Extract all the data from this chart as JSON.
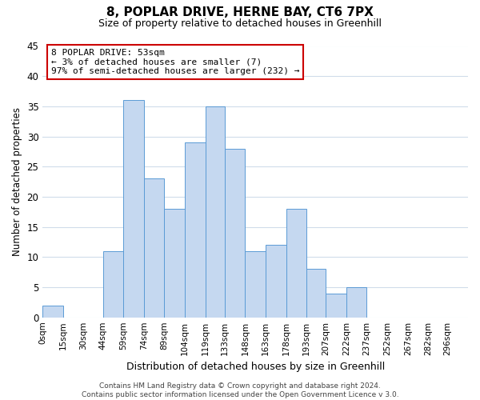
{
  "title": "8, POPLAR DRIVE, HERNE BAY, CT6 7PX",
  "subtitle": "Size of property relative to detached houses in Greenhill",
  "xlabel": "Distribution of detached houses by size in Greenhill",
  "ylabel": "Number of detached properties",
  "bar_labels": [
    "0sqm",
    "15sqm",
    "30sqm",
    "44sqm",
    "59sqm",
    "74sqm",
    "89sqm",
    "104sqm",
    "119sqm",
    "133sqm",
    "148sqm",
    "163sqm",
    "178sqm",
    "193sqm",
    "207sqm",
    "222sqm",
    "237sqm",
    "252sqm",
    "267sqm",
    "282sqm",
    "296sqm"
  ],
  "bar_heights": [
    2,
    0,
    0,
    11,
    36,
    23,
    18,
    29,
    35,
    28,
    11,
    12,
    18,
    8,
    4,
    5,
    0,
    0,
    0,
    0,
    0
  ],
  "bar_left_edges": [
    0,
    15,
    30,
    44,
    59,
    74,
    89,
    104,
    119,
    133,
    148,
    163,
    178,
    193,
    207,
    222,
    237,
    252,
    267,
    282,
    296
  ],
  "bar_widths": [
    15,
    15,
    14,
    15,
    15,
    15,
    15,
    15,
    14,
    15,
    15,
    15,
    15,
    14,
    15,
    15,
    15,
    15,
    15,
    14,
    15
  ],
  "bar_color": "#c5d8f0",
  "bar_edge_color": "#5b9bd5",
  "ylim": [
    0,
    45
  ],
  "yticks": [
    0,
    5,
    10,
    15,
    20,
    25,
    30,
    35,
    40,
    45
  ],
  "xlim_max": 311,
  "annotation_title": "8 POPLAR DRIVE: 53sqm",
  "annotation_line1": "← 3% of detached houses are smaller (7)",
  "annotation_line2": "97% of semi-detached houses are larger (232) →",
  "annotation_box_color": "#ffffff",
  "annotation_box_edge_color": "#cc0000",
  "footer1": "Contains HM Land Registry data © Crown copyright and database right 2024.",
  "footer2": "Contains public sector information licensed under the Open Government Licence v 3.0.",
  "background_color": "#ffffff",
  "grid_color": "#d0dcea",
  "title_fontsize": 11,
  "subtitle_fontsize": 9,
  "ylabel_fontsize": 8.5,
  "xlabel_fontsize": 9,
  "ytick_fontsize": 8.5,
  "xtick_fontsize": 7.5,
  "footer_fontsize": 6.5,
  "annot_fontsize": 8.0
}
